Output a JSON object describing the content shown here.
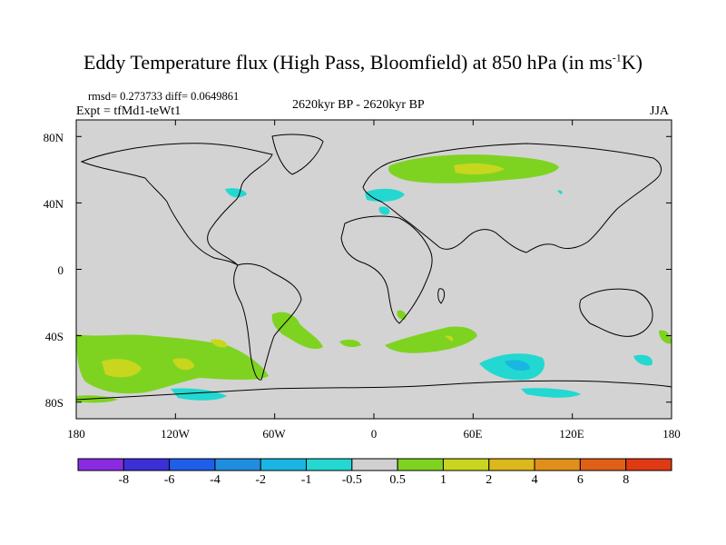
{
  "title": {
    "main": "Eddy Temperature flux (High Pass, Bloomfield) at 850 hPa (in ms",
    "sup": "-1",
    "end": "K)"
  },
  "rmsd_line": "rmsd= 0.273733 diff= 0.0649861",
  "expt_line": "Expt = tfMd1-teWt1",
  "period": "2620kyr BP - 2620kyr BP",
  "season": "JJA",
  "lat_labels": [
    "80N",
    "40N",
    "0",
    "40S",
    "80S"
  ],
  "lon_labels": [
    "180",
    "120W",
    "60W",
    "0",
    "60E",
    "120E",
    "180"
  ],
  "colorbar": {
    "labels": [
      "-8",
      "-6",
      "-4",
      "-2",
      "-1",
      "-0.5",
      "0.5",
      "1",
      "2",
      "4",
      "6",
      "8"
    ],
    "colors": [
      "#8a2be2",
      "#3c2fd8",
      "#1e5ee8",
      "#1f8ee0",
      "#19b6e2",
      "#22d8d0",
      "#d0d0d0",
      "#7ed321",
      "#c8d61e",
      "#dcb81a",
      "#e0901a",
      "#e06018",
      "#e03a14"
    ]
  },
  "colors": {
    "ocean": "#d3d3d3",
    "positive_1": "#7ed321",
    "positive_2": "#c8d61e",
    "negative_1": "#22d8d0",
    "negative_2": "#19b6e2"
  }
}
